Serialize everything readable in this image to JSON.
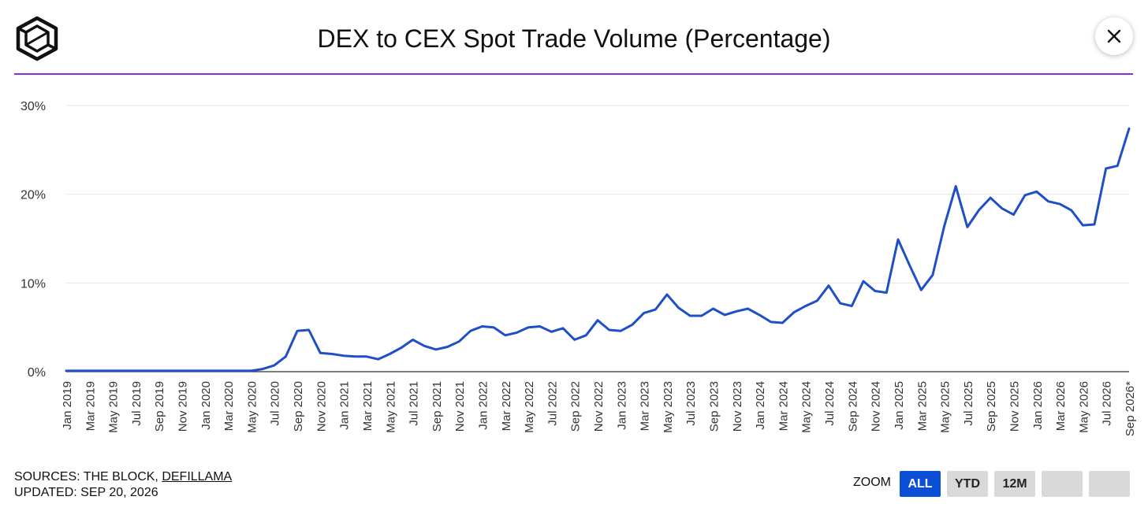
{
  "header": {
    "title": "DEX to CEX Spot Trade Volume (Percentage)",
    "logo_icon": "cube-logo-icon",
    "close_icon": "close-icon"
  },
  "colors": {
    "accent_line": "#8a2be2",
    "series": "#1f4fc7",
    "zoom_active_bg": "#0b4fd6",
    "zoom_inactive_bg": "#d9d9d9"
  },
  "footer": {
    "sources_prefix": "SOURCES: THE BLOCK, ",
    "sources_link": "DEFILLAMA",
    "updated": "UPDATED: SEP 20, 2026"
  },
  "zoom": {
    "label": "ZOOM",
    "buttons": [
      {
        "label": "ALL",
        "active": true
      },
      {
        "label": "YTD",
        "active": false
      },
      {
        "label": "12M",
        "active": false
      },
      {
        "label": "",
        "active": false
      },
      {
        "label": "",
        "active": false
      }
    ]
  },
  "chart_data": {
    "type": "line",
    "title": "DEX to CEX Spot Trade Volume (Percentage)",
    "xlabel": "",
    "ylabel": "",
    "ylim": [
      0,
      30
    ],
    "yticks": [
      0,
      10,
      20,
      30
    ],
    "ytick_labels": [
      "0%",
      "10%",
      "20%",
      "30%"
    ],
    "grid": true,
    "x_tick_labels": [
      "Jan 2019",
      "Mar 2019",
      "May 2019",
      "Jul 2019",
      "Sep 2019",
      "Nov 2019",
      "Jan 2020",
      "Mar 2020",
      "May 2020",
      "Jul 2020",
      "Sep 2020",
      "Nov 2020",
      "Jan 2021",
      "Mar 2021",
      "May 2021",
      "Jul 2021",
      "Sep 2021",
      "Nov 2021",
      "Jan 2022",
      "Mar 2022",
      "May 2022",
      "Jul 2022",
      "Sep 2022",
      "Nov 2022",
      "Jan 2023",
      "Mar 2023",
      "May 2023",
      "Jul 2023",
      "Sep 2023",
      "Nov 2023",
      "Jan 2024",
      "Mar 2024",
      "May 2024",
      "Jul 2024",
      "Sep 2024",
      "Nov 2024",
      "Jan 2025",
      "Mar 2025",
      "May 2025",
      "Jul 2025",
      "Sep 2025",
      "Nov 2025",
      "Jan 2026",
      "Mar 2026",
      "May 2026",
      "Jul 2026",
      "Sep 2026*"
    ],
    "x": [
      "2019-01",
      "2019-02",
      "2019-03",
      "2019-04",
      "2019-05",
      "2019-06",
      "2019-07",
      "2019-08",
      "2019-09",
      "2019-10",
      "2019-11",
      "2019-12",
      "2020-01",
      "2020-02",
      "2020-03",
      "2020-04",
      "2020-05",
      "2020-06",
      "2020-07",
      "2020-08",
      "2020-09",
      "2020-10",
      "2020-11",
      "2020-12",
      "2021-01",
      "2021-02",
      "2021-03",
      "2021-04",
      "2021-05",
      "2021-06",
      "2021-07",
      "2021-08",
      "2021-09",
      "2021-10",
      "2021-11",
      "2021-12",
      "2022-01",
      "2022-02",
      "2022-03",
      "2022-04",
      "2022-05",
      "2022-06",
      "2022-07",
      "2022-08",
      "2022-09",
      "2022-10",
      "2022-11",
      "2022-12",
      "2023-01",
      "2023-02",
      "2023-03",
      "2023-04",
      "2023-05",
      "2023-06",
      "2023-07",
      "2023-08",
      "2023-09",
      "2023-10",
      "2023-11",
      "2023-12",
      "2024-01",
      "2024-02",
      "2024-03",
      "2024-04",
      "2024-05",
      "2024-06",
      "2024-07",
      "2024-08",
      "2024-09",
      "2024-10",
      "2024-11",
      "2024-12",
      "2025-01",
      "2025-02",
      "2025-03",
      "2025-04",
      "2025-05",
      "2025-06",
      "2025-07",
      "2025-08",
      "2025-09",
      "2025-10",
      "2025-11",
      "2025-12",
      "2026-01",
      "2026-02",
      "2026-03",
      "2026-04",
      "2026-05",
      "2026-06",
      "2026-07",
      "2026-08",
      "2026-09"
    ],
    "series": [
      {
        "values": [
          0.1,
          0.1,
          0.1,
          0.1,
          0.1,
          0.1,
          0.1,
          0.1,
          0.1,
          0.1,
          0.1,
          0.1,
          0.1,
          0.1,
          0.1,
          0.1,
          0.1,
          0.3,
          0.7,
          1.7,
          4.6,
          4.7,
          2.1,
          2.0,
          1.8,
          1.7,
          1.7,
          1.4,
          2.0,
          2.7,
          3.6,
          2.9,
          2.5,
          2.8,
          3.4,
          4.6,
          5.1,
          5.0,
          4.1,
          4.4,
          5.0,
          5.1,
          4.5,
          4.9,
          3.6,
          4.1,
          5.8,
          4.7,
          4.6,
          5.3,
          6.6,
          7.0,
          8.7,
          7.2,
          6.3,
          6.3,
          7.1,
          6.4,
          6.8,
          7.1,
          6.4,
          5.6,
          5.5,
          6.7,
          7.4,
          8.0,
          9.7,
          7.7,
          7.4,
          10.2,
          9.1,
          8.9,
          14.9,
          12.0,
          9.2,
          10.9,
          16.4,
          20.9,
          16.3,
          18.2,
          19.6,
          18.4,
          17.7,
          19.9,
          20.3,
          19.2,
          18.9,
          18.2,
          16.5,
          16.6,
          22.9,
          23.2,
          27.4
        ]
      }
    ]
  }
}
